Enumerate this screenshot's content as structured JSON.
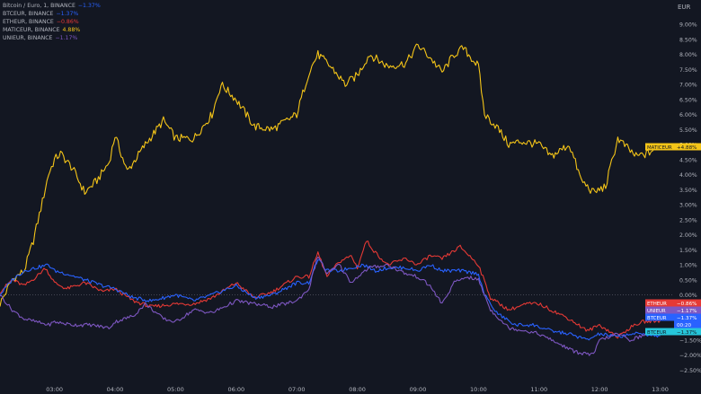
{
  "legend": {
    "rows": [
      {
        "label": "Bitcoin / Euro, 1, BINANCE",
        "change": "−1.37%",
        "color": "#2962ff"
      },
      {
        "label": "BTCEUR, BINANCE",
        "change": "−1.37%",
        "color": "#2962ff"
      },
      {
        "label": "ETHEUR, BINANCE",
        "change": "−0.86%",
        "color": "#e53935"
      },
      {
        "label": "MATICEUR, BINANCE",
        "change": "4.88%",
        "color": "#f5c518"
      },
      {
        "label": "UNIEUR, BINANCE",
        "change": "−1.17%",
        "color": "#7e57c2"
      }
    ]
  },
  "axis_unit": "EUR",
  "price_tags": [
    {
      "text": "MATICEUR",
      "value": "+4.88%",
      "color": "#f5c518",
      "text_color": "#131722"
    },
    {
      "text": "ETHEUR",
      "value": "−0.86%",
      "color": "#e53935",
      "text_color": "#ffffff"
    },
    {
      "text": "UNIEUR",
      "value": "−1.17%",
      "color": "#7e57c2",
      "text_color": "#ffffff"
    },
    {
      "text": "BTCEUR",
      "value": "−1.37%",
      "color": "#2962ff",
      "text_color": "#ffffff"
    },
    {
      "text": "",
      "value": "00:20",
      "color": "#2962ff",
      "text_color": "#ffffff"
    },
    {
      "text": "BTCEUR",
      "value": "−1.37%",
      "color": "#26c6da",
      "text_color": "#131722"
    }
  ],
  "chart_data": {
    "type": "line",
    "title": "",
    "ylabel": "EUR",
    "ylim": [
      -2.8,
      9.6
    ],
    "y_ticks": [
      "9.00%",
      "8.50%",
      "8.00%",
      "7.50%",
      "7.00%",
      "6.50%",
      "6.00%",
      "5.50%",
      "5.00%",
      "4.50%",
      "4.00%",
      "3.50%",
      "3.00%",
      "2.50%",
      "2.00%",
      "1.50%",
      "1.00%",
      "0.50%",
      "0.00%",
      "−0.50%",
      "−1.00%",
      "−1.50%",
      "−2.00%",
      "−2.50%"
    ],
    "y_tick_values": [
      9,
      8.5,
      8,
      7.5,
      7,
      6.5,
      6,
      5.5,
      5,
      4.5,
      4,
      3.5,
      3,
      2.5,
      2,
      1.5,
      1,
      0.5,
      0,
      -0.5,
      -1,
      -1.5,
      -2,
      -2.5
    ],
    "x_ticks": [
      "03:00",
      "04:00",
      "05:00",
      "06:00",
      "07:00",
      "08:00",
      "09:00",
      "10:00",
      "11:00",
      "12:00",
      "13:00"
    ],
    "x_tick_hours": [
      3,
      4,
      5,
      6,
      7,
      8,
      9,
      10,
      11,
      12,
      13
    ],
    "xlim": [
      2.1,
      13.2
    ],
    "grid": false,
    "zero_line": true,
    "series": [
      {
        "name": "MATICEUR",
        "color": "#f5c518",
        "x": [
          2.1,
          2.3,
          2.5,
          2.65,
          2.8,
          2.9,
          3.0,
          3.1,
          3.3,
          3.5,
          3.7,
          3.9,
          4.0,
          4.2,
          4.5,
          4.8,
          5.0,
          5.3,
          5.6,
          5.75,
          6.0,
          6.3,
          6.6,
          7.0,
          7.2,
          7.35,
          7.6,
          7.8,
          8.0,
          8.2,
          8.5,
          8.8,
          9.0,
          9.2,
          9.4,
          9.6,
          9.75,
          10.0,
          10.1,
          10.3,
          10.5,
          10.7,
          11.0,
          11.2,
          11.5,
          11.7,
          11.9,
          12.1,
          12.3,
          12.6,
          12.8,
          13.0
        ],
        "y": [
          -0.3,
          0.5,
          0.8,
          1.8,
          3.1,
          4.0,
          4.5,
          4.7,
          4.2,
          3.4,
          3.8,
          4.4,
          5.3,
          4.1,
          5.0,
          5.8,
          5.2,
          5.2,
          6.0,
          7.0,
          6.5,
          5.6,
          5.5,
          6.0,
          7.4,
          8.0,
          7.5,
          7.0,
          7.3,
          8.0,
          7.6,
          7.7,
          8.3,
          7.9,
          7.4,
          8.0,
          8.2,
          7.6,
          6.0,
          5.6,
          5.0,
          5.1,
          5.0,
          4.6,
          5.0,
          3.8,
          3.4,
          3.6,
          5.2,
          4.6,
          4.7,
          5.0
        ]
      },
      {
        "name": "ETHEUR",
        "color": "#e53935",
        "x": [
          2.1,
          2.3,
          2.5,
          2.7,
          2.85,
          3.0,
          3.2,
          3.5,
          3.8,
          4.0,
          4.3,
          4.6,
          5.0,
          5.3,
          5.6,
          6.0,
          6.3,
          6.6,
          7.0,
          7.2,
          7.35,
          7.5,
          7.7,
          7.9,
          8.0,
          8.15,
          8.3,
          8.5,
          8.8,
          9.0,
          9.2,
          9.4,
          9.7,
          10.0,
          10.2,
          10.5,
          10.8,
          11.0,
          11.2,
          11.5,
          11.8,
          12.0,
          12.3,
          12.5,
          12.7,
          13.0
        ],
        "y": [
          0.1,
          0.5,
          0.3,
          0.6,
          0.9,
          0.4,
          0.2,
          0.4,
          0.1,
          0.2,
          -0.2,
          -0.4,
          -0.3,
          -0.3,
          -0.1,
          0.4,
          -0.1,
          0.1,
          0.6,
          0.6,
          1.4,
          0.6,
          1.1,
          1.3,
          0.9,
          1.8,
          1.4,
          1.0,
          1.2,
          1.0,
          1.3,
          1.2,
          1.6,
          1.0,
          -0.1,
          -0.5,
          -0.3,
          -0.3,
          -0.5,
          -0.8,
          -1.2,
          -1.0,
          -1.4,
          -1.1,
          -0.9,
          -0.86
        ]
      },
      {
        "name": "BTCEUR",
        "color": "#2962ff",
        "x": [
          2.1,
          2.3,
          2.5,
          2.7,
          2.9,
          3.0,
          3.2,
          3.5,
          3.8,
          4.0,
          4.3,
          4.6,
          5.0,
          5.3,
          5.6,
          6.0,
          6.3,
          6.6,
          7.0,
          7.2,
          7.35,
          7.5,
          7.7,
          7.9,
          8.1,
          8.3,
          8.5,
          8.8,
          9.0,
          9.2,
          9.4,
          9.7,
          10.0,
          10.1,
          10.3,
          10.6,
          10.9,
          11.2,
          11.5,
          11.8,
          12.0,
          12.3,
          12.5,
          12.7,
          13.0
        ],
        "y": [
          0.0,
          0.5,
          0.8,
          0.9,
          1.0,
          0.8,
          0.7,
          0.5,
          0.3,
          0.2,
          -0.1,
          -0.2,
          0.0,
          -0.2,
          0.0,
          0.3,
          -0.1,
          0.0,
          0.4,
          0.4,
          1.2,
          0.8,
          0.8,
          0.9,
          1.0,
          0.8,
          0.9,
          0.9,
          0.8,
          1.0,
          0.8,
          0.8,
          0.7,
          0.0,
          -0.6,
          -1.0,
          -1.0,
          -1.2,
          -1.3,
          -1.5,
          -1.3,
          -1.4,
          -1.3,
          -1.3,
          -1.37
        ]
      },
      {
        "name": "UNIEUR",
        "color": "#7e57c2",
        "x": [
          2.1,
          2.3,
          2.5,
          2.7,
          2.9,
          3.0,
          3.3,
          3.6,
          3.9,
          4.0,
          4.3,
          4.5,
          4.8,
          5.0,
          5.3,
          5.6,
          5.9,
          6.0,
          6.3,
          6.6,
          7.0,
          7.2,
          7.35,
          7.5,
          7.7,
          7.9,
          8.0,
          8.2,
          8.5,
          8.8,
          9.0,
          9.2,
          9.4,
          9.6,
          9.8,
          10.0,
          10.2,
          10.5,
          10.8,
          11.0,
          11.3,
          11.6,
          11.9,
          12.0,
          12.3,
          12.5,
          12.8,
          13.0
        ],
        "y": [
          0.0,
          -0.5,
          -0.8,
          -0.9,
          -1.0,
          -0.9,
          -1.0,
          -1.0,
          -1.1,
          -0.9,
          -0.7,
          -0.3,
          -0.8,
          -0.9,
          -0.5,
          -0.6,
          -0.3,
          -0.2,
          -0.3,
          -0.4,
          -0.2,
          0.2,
          1.3,
          0.7,
          1.0,
          0.4,
          0.6,
          0.9,
          1.0,
          0.7,
          0.6,
          0.3,
          -0.3,
          0.4,
          0.6,
          0.5,
          -0.5,
          -1.1,
          -1.2,
          -1.3,
          -1.6,
          -1.9,
          -2.0,
          -1.5,
          -1.3,
          -1.5,
          -1.3,
          -1.17
        ]
      }
    ]
  }
}
